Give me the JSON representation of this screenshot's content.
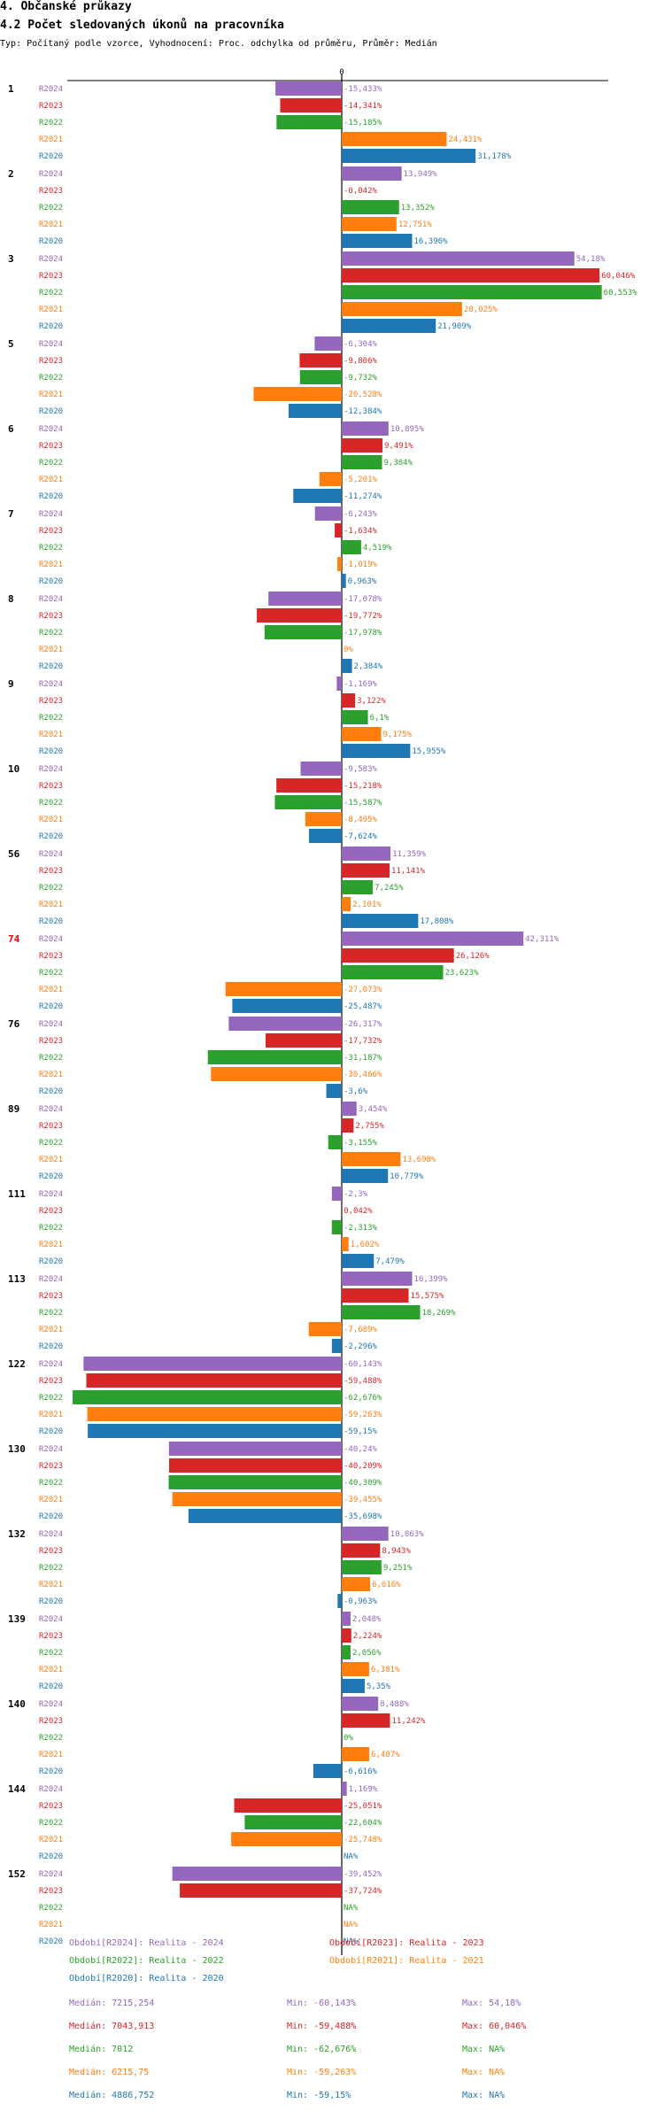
{
  "header": {
    "title": "4. Občanské průkazy",
    "subtitle": "4.2 Počet sledovaných úkonů na pracovníka",
    "description": "Typ: Počítaný podle vzorce, Vyhodnocení: Proc. odchylka od průměru, Průměr: Medián"
  },
  "colors": {
    "R2024": "#9467bd",
    "R2023": "#d62728",
    "R2022": "#2ca02c",
    "R2021": "#ff7f0e",
    "R2020": "#1f77b4",
    "highlight": "#ff0000"
  },
  "chart_data": {
    "type": "bar",
    "orientation": "horizontal",
    "zero_label": "0",
    "unit": "%",
    "xlim": [
      -62.676,
      60.553
    ],
    "series_names": [
      "R2024",
      "R2023",
      "R2022",
      "R2021",
      "R2020"
    ],
    "groups": [
      {
        "label": "1",
        "values": [
          -15.433,
          -14.341,
          -15.185,
          24.431,
          31.178
        ]
      },
      {
        "label": "2",
        "values": [
          13.949,
          -0.042,
          13.352,
          12.751,
          16.396
        ]
      },
      {
        "label": "3",
        "values": [
          54.18,
          60.046,
          60.553,
          28.025,
          21.909
        ]
      },
      {
        "label": "5",
        "values": [
          -6.304,
          -9.806,
          -9.732,
          -20.528,
          -12.384
        ]
      },
      {
        "label": "6",
        "values": [
          10.895,
          9.491,
          9.384,
          -5.201,
          -11.274
        ]
      },
      {
        "label": "7",
        "values": [
          -6.243,
          -1.634,
          4.519,
          -1.019,
          0.963
        ]
      },
      {
        "label": "8",
        "values": [
          -17.078,
          -19.772,
          -17.978,
          0,
          2.384
        ]
      },
      {
        "label": "9",
        "values": [
          -1.169,
          3.122,
          6.1,
          9.175,
          15.955
        ]
      },
      {
        "label": "10",
        "values": [
          -9.583,
          -15.218,
          -15.587,
          -8.495,
          -7.624
        ]
      },
      {
        "label": "56",
        "values": [
          11.359,
          11.141,
          7.245,
          2.101,
          17.808
        ]
      },
      {
        "label": "74",
        "highlight": true,
        "values": [
          42.311,
          26.126,
          23.623,
          -27.073,
          -25.487
        ]
      },
      {
        "label": "76",
        "values": [
          -26.317,
          -17.732,
          -31.187,
          -30.466,
          -3.6
        ]
      },
      {
        "label": "89",
        "values": [
          3.454,
          2.755,
          -3.155,
          13.698,
          10.779
        ]
      },
      {
        "label": "111",
        "values": [
          -2.3,
          0.042,
          -2.313,
          1.602,
          7.479
        ]
      },
      {
        "label": "113",
        "values": [
          16.399,
          15.575,
          18.269,
          -7.689,
          -2.296
        ]
      },
      {
        "label": "122",
        "values": [
          -60.143,
          -59.488,
          -62.676,
          -59.263,
          -59.15
        ]
      },
      {
        "label": "130",
        "values": [
          -40.24,
          -40.209,
          -40.309,
          -39.455,
          -35.698
        ]
      },
      {
        "label": "132",
        "values": [
          10.863,
          8.943,
          9.251,
          6.616,
          -0.963
        ]
      },
      {
        "label": "139",
        "values": [
          2.048,
          2.224,
          2.056,
          6.381,
          5.35
        ]
      },
      {
        "label": "140",
        "values": [
          8.488,
          11.242,
          0,
          6.407,
          -6.616
        ]
      },
      {
        "label": "144",
        "values": [
          1.169,
          -25.051,
          -22.604,
          -25.748,
          null
        ]
      },
      {
        "label": "152",
        "values": [
          -39.452,
          -37.724,
          null,
          null,
          null
        ]
      }
    ],
    "legend": [
      {
        "text": "Období[R2024]: Realita - 2024",
        "series": "R2024"
      },
      {
        "text": "Období[R2023]: Realita - 2023",
        "series": "R2023"
      },
      {
        "text": "Období[R2022]: Realita - 2022",
        "series": "R2022"
      },
      {
        "text": "Období[R2021]: Realita - 2021",
        "series": "R2021"
      },
      {
        "text": "Období[R2020]: Realita - 2020",
        "series": "R2020"
      }
    ],
    "stats": [
      {
        "series": "R2024",
        "median": "Medián: 7215,254",
        "min": "Min: -60,143%",
        "max": "Max: 54,18%"
      },
      {
        "series": "R2023",
        "median": "Medián: 7043,913",
        "min": "Min: -59,488%",
        "max": "Max: 60,046%"
      },
      {
        "series": "R2022",
        "median": "Medián: 7012",
        "min": "Min: -62,676%",
        "max": "Max: NA%"
      },
      {
        "series": "R2021",
        "median": "Medián: 6215,75",
        "min": "Min: -59,263%",
        "max": "Max: NA%"
      },
      {
        "series": "R2020",
        "median": "Medián: 4886,752",
        "min": "Min: -59,15%",
        "max": "Max: NA%"
      }
    ]
  }
}
